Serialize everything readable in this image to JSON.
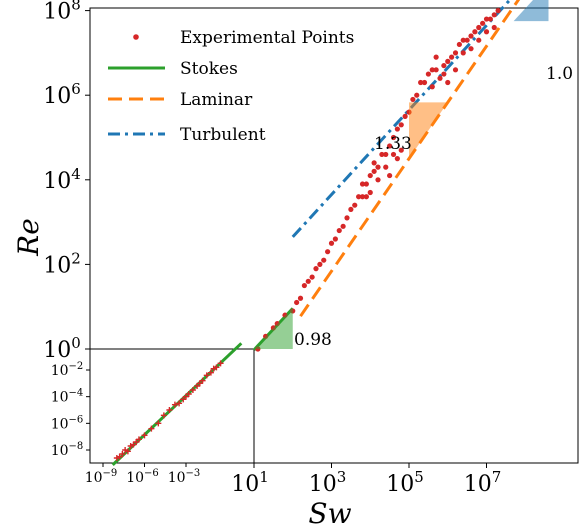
{
  "chart_data": {
    "type": "scatter",
    "xlabel": "Sw",
    "ylabel": "Re",
    "xscale": "log",
    "yscale": "log",
    "xlim_log10": [
      0.4,
      8.6
    ],
    "ylim_log10": [
      -0.2,
      9.2
    ],
    "x_ticks": [
      {
        "label": "10",
        "exp": "1"
      },
      {
        "label": "10",
        "exp": "3"
      },
      {
        "label": "10",
        "exp": "5"
      },
      {
        "label": "10",
        "exp": "7"
      }
    ],
    "y_ticks": [
      {
        "label": "10",
        "exp": "0"
      },
      {
        "label": "10",
        "exp": "2"
      },
      {
        "label": "10",
        "exp": "4"
      },
      {
        "label": "10",
        "exp": "6"
      },
      {
        "label": "10",
        "exp": "8"
      }
    ],
    "inset": {
      "xlim_log10": [
        -10,
        1
      ],
      "ylim_log10": [
        -9,
        0
      ],
      "x_ticks": [
        {
          "label": "10",
          "exp": "−9"
        },
        {
          "label": "10",
          "exp": "−6"
        },
        {
          "label": "10",
          "exp": "−3"
        }
      ],
      "y_ticks": [
        {
          "label": "10",
          "exp": "−2"
        },
        {
          "label": "10",
          "exp": "−4"
        },
        {
          "label": "10",
          "exp": "−6"
        },
        {
          "label": "10",
          "exp": "−8"
        }
      ]
    },
    "legend": {
      "position": "upper-left",
      "entries": [
        {
          "label": "Experimental Points",
          "color": "#d62728",
          "style": "dot"
        },
        {
          "label": "Stokes",
          "color": "#2ca02c",
          "style": "solid"
        },
        {
          "label": "Laminar",
          "color": "#ff7f0e",
          "style": "dashed"
        },
        {
          "label": "Turbulent",
          "color": "#1f77b4",
          "style": "dashdot"
        }
      ]
    },
    "series": [
      {
        "name": "Stokes",
        "log_slope": 0.98,
        "log_intercept": -1.0,
        "log_x_range": [
          1.0,
          2.0
        ],
        "color": "#2ca02c"
      },
      {
        "name": "Laminar",
        "log_slope": 1.33,
        "log_intercept": -2.15,
        "log_x_range": [
          2.2,
          8.3
        ],
        "color": "#ff7f0e"
      },
      {
        "name": "Turbulent",
        "log_slope": 1.0,
        "log_intercept": 0.65,
        "log_x_range": [
          2.0,
          8.6
        ],
        "color": "#1f77b4"
      }
    ],
    "inset_series": [
      {
        "name": "Stokes",
        "log_slope": 0.98,
        "log_intercept": -0.98,
        "log_x_range": [
          -8.3,
          1.0
        ],
        "color": "#2ca02c"
      }
    ],
    "experimental_points": [
      [
        1.1,
        0.0
      ],
      [
        1.3,
        0.3
      ],
      [
        1.5,
        0.5
      ],
      [
        1.6,
        0.6
      ],
      [
        1.8,
        0.8
      ],
      [
        2.0,
        0.9
      ],
      [
        2.1,
        1.1
      ],
      [
        2.2,
        1.2
      ],
      [
        2.3,
        1.5
      ],
      [
        2.4,
        1.6
      ],
      [
        2.5,
        1.7
      ],
      [
        2.6,
        1.9
      ],
      [
        2.7,
        2.0
      ],
      [
        2.8,
        2.1
      ],
      [
        2.9,
        2.3
      ],
      [
        3.0,
        2.5
      ],
      [
        3.1,
        2.6
      ],
      [
        3.2,
        2.8
      ],
      [
        3.3,
        2.9
      ],
      [
        3.4,
        3.1
      ],
      [
        3.5,
        3.3
      ],
      [
        3.6,
        3.4
      ],
      [
        3.7,
        3.6
      ],
      [
        3.8,
        3.6
      ],
      [
        3.9,
        3.9
      ],
      [
        4.0,
        4.1
      ],
      [
        4.1,
        4.2
      ],
      [
        4.2,
        4.3
      ],
      [
        4.3,
        4.6
      ],
      [
        4.4,
        4.6
      ],
      [
        4.5,
        4.8
      ],
      [
        4.6,
        5.0
      ],
      [
        4.7,
        5.2
      ],
      [
        4.8,
        5.3
      ],
      [
        4.9,
        5.5
      ],
      [
        5.0,
        5.6
      ],
      [
        5.1,
        5.9
      ],
      [
        5.2,
        6.0
      ],
      [
        5.3,
        6.3
      ],
      [
        5.4,
        6.3
      ],
      [
        5.5,
        6.5
      ],
      [
        5.6,
        6.6
      ],
      [
        5.7,
        6.6
      ],
      [
        5.8,
        6.4
      ],
      [
        5.9,
        6.7
      ],
      [
        6.0,
        6.8
      ],
      [
        6.1,
        6.9
      ],
      [
        6.2,
        7.0
      ],
      [
        6.3,
        7.2
      ],
      [
        6.4,
        7.3
      ],
      [
        6.5,
        7.3
      ],
      [
        6.6,
        7.4
      ],
      [
        6.7,
        7.5
      ],
      [
        6.8,
        7.6
      ],
      [
        6.9,
        7.7
      ],
      [
        7.0,
        7.8
      ],
      [
        7.1,
        7.8
      ],
      [
        7.2,
        7.9
      ],
      [
        7.3,
        8.0
      ],
      [
        7.4,
        8.1
      ],
      [
        7.5,
        8.2
      ],
      [
        7.6,
        8.3
      ],
      [
        7.7,
        8.4
      ],
      [
        7.8,
        8.5
      ],
      [
        8.0,
        8.6
      ],
      [
        8.2,
        8.6
      ],
      [
        4.4,
        4.3
      ],
      [
        4.6,
        4.6
      ],
      [
        4.7,
        4.5
      ],
      [
        4.8,
        4.7
      ],
      [
        4.5,
        4.1
      ],
      [
        4.2,
        4.0
      ],
      [
        4.0,
        3.7
      ],
      [
        3.9,
        3.6
      ],
      [
        3.8,
        3.9
      ],
      [
        4.1,
        4.4
      ],
      [
        5.6,
        6.2
      ],
      [
        5.7,
        6.9
      ],
      [
        5.9,
        6.5
      ],
      [
        6.0,
        6.3
      ],
      [
        6.2,
        6.6
      ],
      [
        6.4,
        7.0
      ],
      [
        6.6,
        7.1
      ],
      [
        6.8,
        7.3
      ],
      [
        7.0,
        7.5
      ],
      [
        7.2,
        7.6
      ]
    ],
    "inset_points": [
      [
        -8.0,
        -8.6
      ],
      [
        -7.8,
        -8.5
      ],
      [
        -7.6,
        -8.3
      ],
      [
        -7.4,
        -8.0
      ],
      [
        -7.2,
        -8.1
      ],
      [
        -7.0,
        -7.7
      ],
      [
        -6.8,
        -7.6
      ],
      [
        -6.6,
        -7.4
      ],
      [
        -6.4,
        -7.2
      ],
      [
        -6.0,
        -6.9
      ],
      [
        -5.5,
        -6.4
      ],
      [
        -5.0,
        -6.0
      ],
      [
        -4.6,
        -5.4
      ],
      [
        -4.2,
        -5.0
      ],
      [
        -3.8,
        -4.6
      ],
      [
        -3.5,
        -4.5
      ],
      [
        -3.2,
        -4.2
      ],
      [
        -3.0,
        -4.0
      ],
      [
        -2.8,
        -3.8
      ],
      [
        -2.5,
        -3.5
      ],
      [
        -2.2,
        -3.2
      ],
      [
        -2.0,
        -3.0
      ],
      [
        -1.8,
        -2.8
      ],
      [
        -1.5,
        -2.4
      ],
      [
        -1.2,
        -2.2
      ],
      [
        -1.0,
        -1.9
      ],
      [
        -0.8,
        -1.8
      ],
      [
        -0.5,
        -1.5
      ]
    ],
    "slope_annotations": [
      {
        "text": "0.98",
        "color": "#2ca02c"
      },
      {
        "text": "1.33",
        "color": "#ff7f0e"
      },
      {
        "text": "1.0",
        "color": "#1f77b4"
      }
    ]
  }
}
